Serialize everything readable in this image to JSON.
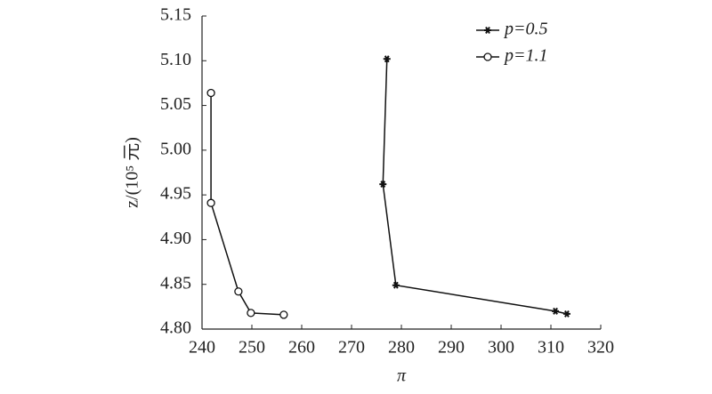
{
  "chart_data": {
    "type": "line",
    "xlabel": "π",
    "ylabel": "z/(10⁵ 元)",
    "xlim": [
      240,
      320
    ],
    "xticks": [
      240,
      250,
      260,
      270,
      280,
      290,
      300,
      310,
      320
    ],
    "ylim": [
      4.8,
      5.15
    ],
    "yticks": [
      {
        "value": 4.8,
        "label": "4.80"
      },
      4.85,
      {
        "value": 4.9,
        "label": "4.90"
      },
      4.95,
      {
        "value": 5.0,
        "label": "5.00"
      },
      5.05,
      {
        "value": 5.1,
        "label": "5.10"
      },
      5.15
    ],
    "legend": "upper right",
    "series": [
      {
        "name": "p=0.5",
        "color": "#111111",
        "marker": "star",
        "x": [
          277.1,
          276.3,
          278.9,
          310.9,
          313.2
        ],
        "values": [
          5.102,
          4.962,
          4.849,
          4.82,
          4.817
        ]
      },
      {
        "name": "p=1.1",
        "color": "#111111",
        "marker": "circle",
        "x": [
          241.8,
          241.8,
          247.3,
          249.8,
          256.4
        ],
        "values": [
          5.064,
          4.941,
          4.842,
          4.818,
          4.816
        ]
      }
    ]
  }
}
